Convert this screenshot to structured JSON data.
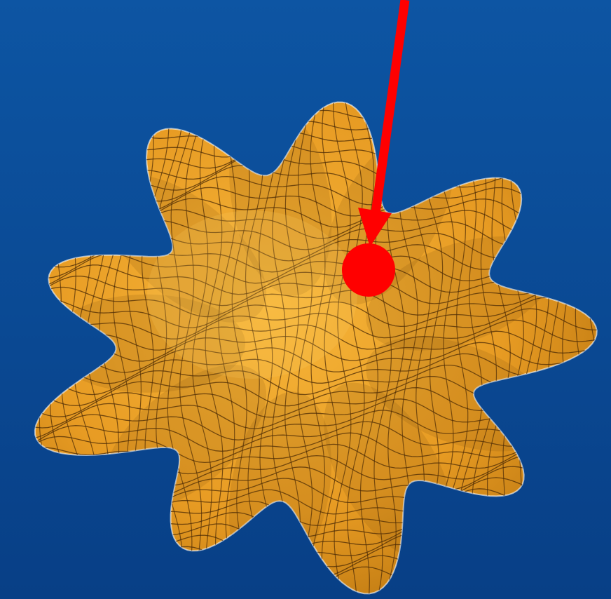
{
  "scene": {
    "background_top": "#0d55a3",
    "background_bottom": "#083f86",
    "surface_fill_light": "#f7b63a",
    "surface_fill_mid": "#e79b23",
    "surface_fill_dark": "#b8740f",
    "mesh_line_color": "#4a2a05",
    "pointer_color": "#ff0000"
  }
}
